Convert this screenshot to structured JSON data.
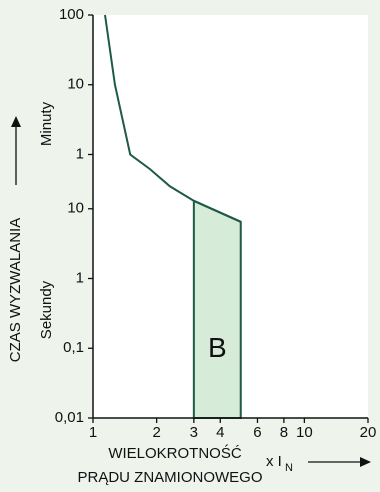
{
  "chart_data": {
    "type": "line",
    "y_label": "CZAS WYZWALANIA",
    "y_upper_label": "Minuty",
    "y_lower_label": "Sekundy",
    "x_label_line1": "WIELOKROTNOŚĆ",
    "x_label_line2": "PRĄDU ZNAMIONOWEGO",
    "x_unit": "x I",
    "x_unit_sub": "N",
    "x_log": true,
    "y_log": true,
    "xlim": [
      1,
      20
    ],
    "ylim": [
      0.01,
      6000
    ],
    "xticks": [
      1,
      2,
      3,
      4,
      6,
      8,
      10,
      20
    ],
    "yticks": [
      {
        "value": 6000,
        "label": "100"
      },
      {
        "value": 600,
        "label": "10"
      },
      {
        "value": 60,
        "label": "1"
      },
      10,
      1,
      {
        "value": 0.1,
        "label": "0,1"
      },
      {
        "value": 0.01,
        "label": "0,01"
      }
    ],
    "x": [
      1.14,
      1.27,
      1.5,
      1.86,
      2.31,
      3,
      5
    ],
    "series": [
      {
        "color": "#1e5a44",
        "values": [
          6000,
          600,
          60,
          37,
          21,
          13,
          6.5
        ]
      }
    ],
    "band": {
      "label": "B",
      "color": "#d6ebd8",
      "x": [
        3,
        5
      ],
      "upper": [
        13,
        6.5
      ],
      "lower": [
        0.01,
        0.01
      ]
    }
  }
}
